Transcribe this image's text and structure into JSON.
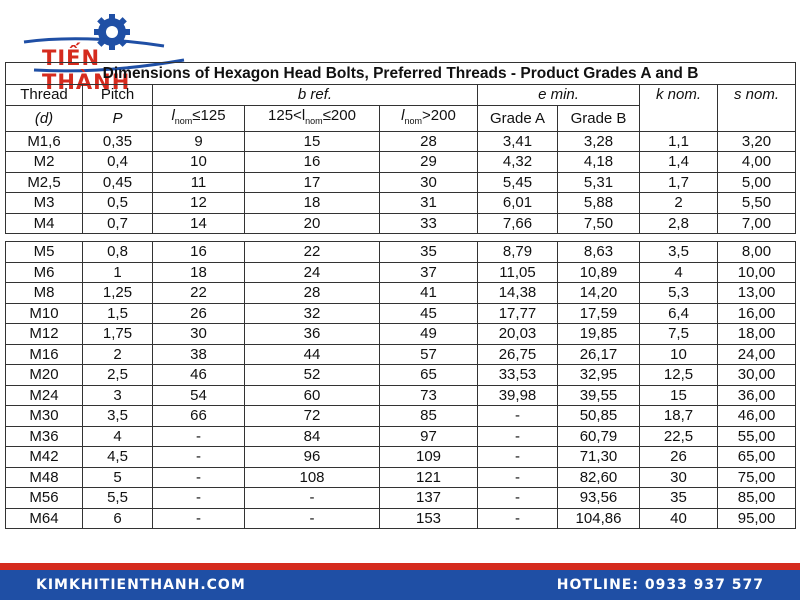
{
  "brand": {
    "name": "TIẾN THÀNH",
    "primary_color": "#d52b1e",
    "secondary_color": "#1f4fa5"
  },
  "table": {
    "title": "Dimensions of Hexagon Head Bolts, Preferred Threads - Product Grades A and B",
    "headers": {
      "thread": "Thread",
      "thread_sub": "(d)",
      "pitch": "Pitch",
      "pitch_sub": "P",
      "bref": "b ref.",
      "emin": "e min.",
      "knom": "k nom.",
      "snom": "s nom.",
      "l1_pre": "l",
      "l1_sub": "nom",
      "l1_post": "≤125",
      "l2_pre": "125<l",
      "l2_sub": "nom",
      "l2_post": "≤200",
      "l3_pre": "l",
      "l3_sub": "nom",
      "l3_post": ">200",
      "grade_a": "Grade A",
      "grade_b": "Grade B"
    },
    "group1": [
      [
        "M1,6",
        "0,35",
        "9",
        "15",
        "28",
        "3,41",
        "3,28",
        "1,1",
        "3,20"
      ],
      [
        "M2",
        "0,4",
        "10",
        "16",
        "29",
        "4,32",
        "4,18",
        "1,4",
        "4,00"
      ],
      [
        "M2,5",
        "0,45",
        "11",
        "17",
        "30",
        "5,45",
        "5,31",
        "1,7",
        "5,00"
      ],
      [
        "M3",
        "0,5",
        "12",
        "18",
        "31",
        "6,01",
        "5,88",
        "2",
        "5,50"
      ],
      [
        "M4",
        "0,7",
        "14",
        "20",
        "33",
        "7,66",
        "7,50",
        "2,8",
        "7,00"
      ]
    ],
    "group2": [
      [
        "M5",
        "0,8",
        "16",
        "22",
        "35",
        "8,79",
        "8,63",
        "3,5",
        "8,00"
      ],
      [
        "M6",
        "1",
        "18",
        "24",
        "37",
        "11,05",
        "10,89",
        "4",
        "10,00"
      ],
      [
        "M8",
        "1,25",
        "22",
        "28",
        "41",
        "14,38",
        "14,20",
        "5,3",
        "13,00"
      ],
      [
        "M10",
        "1,5",
        "26",
        "32",
        "45",
        "17,77",
        "17,59",
        "6,4",
        "16,00"
      ],
      [
        "M12",
        "1,75",
        "30",
        "36",
        "49",
        "20,03",
        "19,85",
        "7,5",
        "18,00"
      ],
      [
        "M16",
        "2",
        "38",
        "44",
        "57",
        "26,75",
        "26,17",
        "10",
        "24,00"
      ],
      [
        "M20",
        "2,5",
        "46",
        "52",
        "65",
        "33,53",
        "32,95",
        "12,5",
        "30,00"
      ],
      [
        "M24",
        "3",
        "54",
        "60",
        "73",
        "39,98",
        "39,55",
        "15",
        "36,00"
      ],
      [
        "M30",
        "3,5",
        "66",
        "72",
        "85",
        "-",
        "50,85",
        "18,7",
        "46,00"
      ],
      [
        "M36",
        "4",
        "-",
        "84",
        "97",
        "-",
        "60,79",
        "22,5",
        "55,00"
      ],
      [
        "M42",
        "4,5",
        "-",
        "96",
        "109",
        "-",
        "71,30",
        "26",
        "65,00"
      ],
      [
        "M48",
        "5",
        "-",
        "108",
        "121",
        "-",
        "82,60",
        "30",
        "75,00"
      ],
      [
        "M56",
        "5,5",
        "-",
        "-",
        "137",
        "-",
        "93,56",
        "35",
        "85,00"
      ],
      [
        "M64",
        "6",
        "-",
        "-",
        "153",
        "-",
        "104,86",
        "40",
        "95,00"
      ]
    ]
  },
  "footer": {
    "website": "KIMKHITIENTHANH.COM",
    "hotline": "HOTLINE: 0933 937 577"
  }
}
